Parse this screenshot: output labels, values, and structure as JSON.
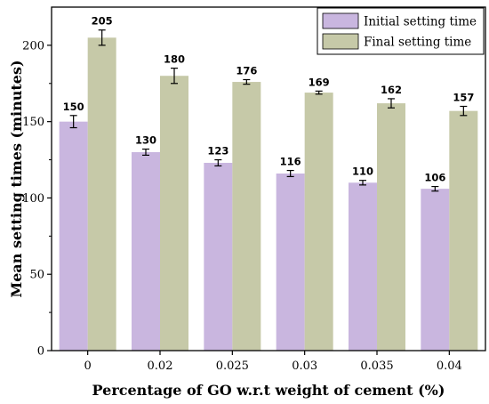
{
  "chart_data": {
    "type": "bar",
    "title": "",
    "xlabel": "Percentage of GO w.r.t weight of cement (%)",
    "ylabel": "Mean setting times (minutes)",
    "categories": [
      "0",
      "0.02",
      "0.025",
      "0.03",
      "0.035",
      "0.04"
    ],
    "series": [
      {
        "name": "Initial setting time",
        "values": [
          150,
          130,
          123,
          116,
          110,
          106
        ],
        "errors": [
          4,
          2,
          2,
          2,
          1.5,
          1.5
        ],
        "labels": [
          "150",
          "130",
          "123",
          "116",
          "110",
          "106"
        ],
        "color": "#c9b6df"
      },
      {
        "name": "Final setting time",
        "values": [
          205,
          180,
          176,
          169,
          162,
          157
        ],
        "errors": [
          5,
          5,
          1.5,
          1,
          3,
          3
        ],
        "labels": [
          "205",
          "180",
          "176",
          "169",
          "162",
          "157"
        ],
        "color": "#c6c9a8"
      }
    ],
    "ylim": [
      0,
      225
    ],
    "yticks": [
      "0",
      "50",
      "100",
      "150",
      "200"
    ],
    "legend": "top-right",
    "grid": false
  }
}
